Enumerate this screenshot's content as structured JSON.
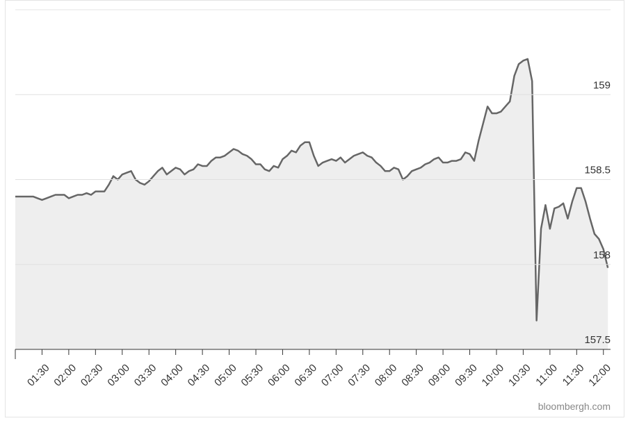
{
  "chart_data": {
    "type": "area",
    "source": "bloombergh.com",
    "x": [
      "01:00",
      "01:05",
      "01:10",
      "01:15",
      "01:20",
      "01:25",
      "01:30",
      "01:35",
      "01:40",
      "01:45",
      "01:50",
      "01:55",
      "02:00",
      "02:05",
      "02:10",
      "02:15",
      "02:20",
      "02:25",
      "02:30",
      "02:35",
      "02:40",
      "02:45",
      "02:50",
      "02:55",
      "03:00",
      "03:05",
      "03:10",
      "03:15",
      "03:20",
      "03:25",
      "03:30",
      "03:35",
      "03:40",
      "03:45",
      "03:50",
      "03:55",
      "04:00",
      "04:05",
      "04:10",
      "04:15",
      "04:20",
      "04:25",
      "04:30",
      "04:35",
      "04:40",
      "04:45",
      "04:50",
      "04:55",
      "05:00",
      "05:05",
      "05:10",
      "05:15",
      "05:20",
      "05:25",
      "05:30",
      "05:35",
      "05:40",
      "05:45",
      "05:50",
      "05:55",
      "06:00",
      "06:05",
      "06:10",
      "06:15",
      "06:20",
      "06:25",
      "06:30",
      "06:35",
      "06:40",
      "06:45",
      "06:50",
      "06:55",
      "07:00",
      "07:05",
      "07:10",
      "07:15",
      "07:20",
      "07:25",
      "07:30",
      "07:35",
      "07:40",
      "07:45",
      "07:50",
      "07:55",
      "08:00",
      "08:05",
      "08:10",
      "08:15",
      "08:20",
      "08:25",
      "08:30",
      "08:35",
      "08:40",
      "08:45",
      "08:50",
      "08:55",
      "09:00",
      "09:05",
      "09:10",
      "09:15",
      "09:20",
      "09:25",
      "09:30",
      "09:35",
      "09:40",
      "09:45",
      "09:50",
      "09:55",
      "10:00",
      "10:05",
      "10:10",
      "10:15",
      "10:20",
      "10:25",
      "10:30",
      "10:35",
      "10:40",
      "10:45",
      "10:50",
      "10:55",
      "11:00",
      "11:05",
      "11:10",
      "11:15",
      "11:20",
      "11:25",
      "11:30",
      "11:35",
      "11:40",
      "11:45",
      "11:50",
      "11:55",
      "12:00",
      "12:05"
    ],
    "values": [
      158.4,
      158.4,
      158.4,
      158.4,
      158.4,
      158.39,
      158.38,
      158.39,
      158.4,
      158.41,
      158.41,
      158.41,
      158.39,
      158.4,
      158.41,
      158.41,
      158.42,
      158.41,
      158.43,
      158.43,
      158.43,
      158.47,
      158.52,
      158.5,
      158.53,
      158.54,
      158.55,
      158.5,
      158.48,
      158.47,
      158.49,
      158.52,
      158.55,
      158.57,
      158.53,
      158.55,
      158.57,
      158.56,
      158.53,
      158.55,
      158.56,
      158.59,
      158.58,
      158.58,
      158.61,
      158.63,
      158.63,
      158.64,
      158.66,
      158.68,
      158.67,
      158.65,
      158.64,
      158.62,
      158.59,
      158.59,
      158.56,
      158.55,
      158.58,
      158.57,
      158.62,
      158.64,
      158.67,
      158.66,
      158.7,
      158.72,
      158.72,
      158.64,
      158.58,
      158.6,
      158.61,
      158.62,
      158.61,
      158.63,
      158.6,
      158.62,
      158.64,
      158.65,
      158.66,
      158.64,
      158.63,
      158.6,
      158.58,
      158.55,
      158.55,
      158.57,
      158.56,
      158.5,
      158.52,
      158.55,
      158.56,
      158.57,
      158.59,
      158.6,
      158.62,
      158.63,
      158.6,
      158.6,
      158.61,
      158.61,
      158.62,
      158.66,
      158.65,
      158.61,
      158.73,
      158.83,
      158.93,
      158.89,
      158.89,
      158.9,
      158.93,
      158.96,
      159.11,
      159.18,
      159.2,
      159.21,
      159.08,
      157.67,
      158.21,
      158.35,
      158.21,
      158.33,
      158.34,
      158.36,
      158.27,
      158.37,
      158.45,
      158.45,
      158.37,
      158.27,
      158.18,
      158.15,
      158.09,
      157.98
    ],
    "color": "#666666",
    "fill": "#eeeeee",
    "xlim": [
      "01:00",
      "12:08"
    ],
    "xticks": [
      "01:30",
      "02:00",
      "02:30",
      "03:00",
      "03:30",
      "04:00",
      "04:30",
      "05:00",
      "05:30",
      "06:00",
      "06:30",
      "07:00",
      "07:30",
      "08:00",
      "08:30",
      "09:00",
      "09:30",
      "10:00",
      "10:30",
      "11:00",
      "11:30",
      "12:00"
    ],
    "ylim": [
      157.5,
      159.5
    ],
    "yticks": [
      157.5,
      158,
      158.5,
      159
    ],
    "grid": true
  }
}
